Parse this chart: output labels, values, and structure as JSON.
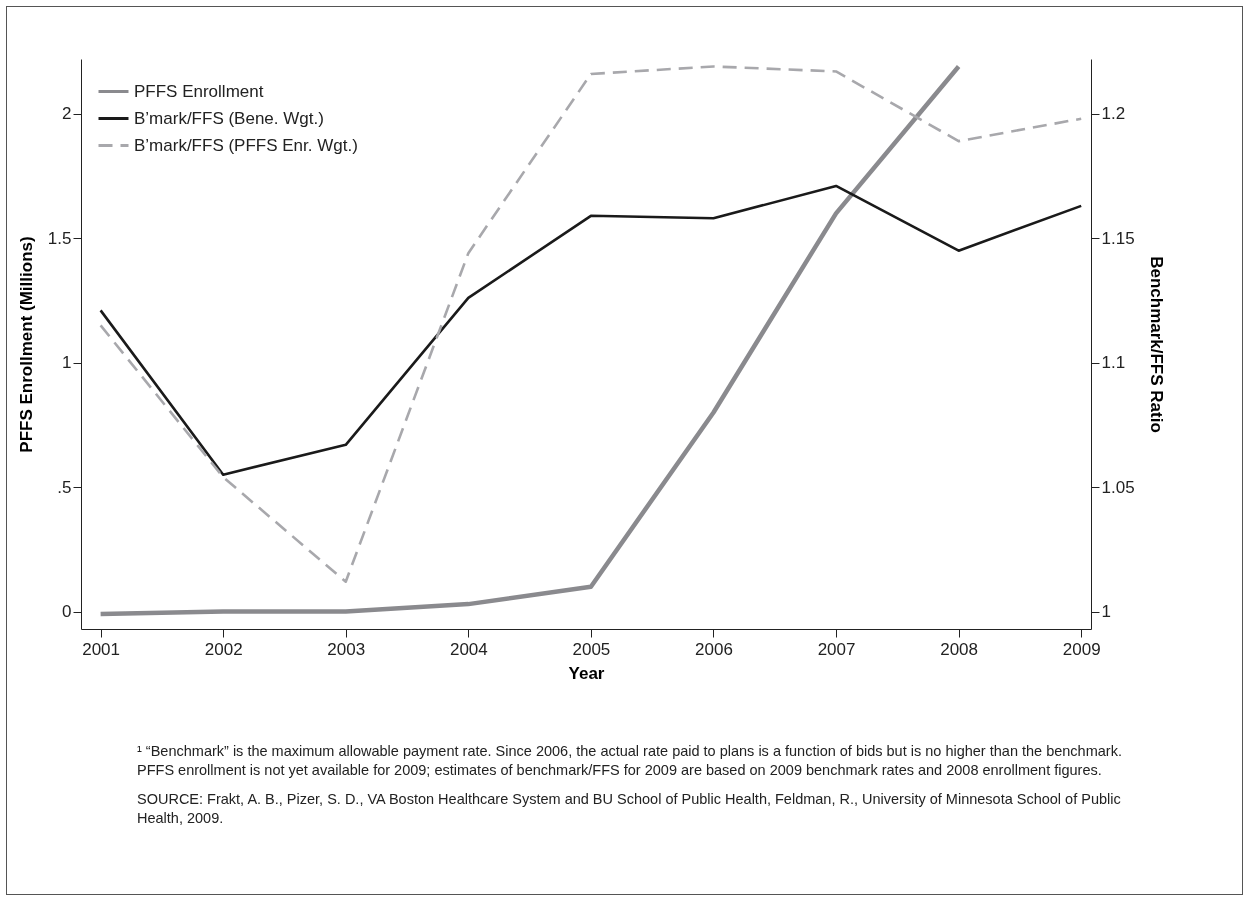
{
  "chart_data": {
    "type": "line",
    "xlabel": "Year",
    "ylabel": "PFFS Enrollment (Millions)",
    "y2label": "Benchmark/FFS Ratio",
    "x": [
      2001,
      2002,
      2003,
      2004,
      2005,
      2006,
      2007,
      2008,
      2009
    ],
    "xlim": [
      2000.84,
      2009.08
    ],
    "xticks": [
      2001,
      2002,
      2003,
      2004,
      2005,
      2006,
      2007,
      2008,
      2009
    ],
    "ylim": [
      -0.07,
      2.22
    ],
    "yticks": [
      0,
      {
        "value": 0.5,
        "label": ".5"
      },
      1,
      1.5,
      2
    ],
    "y2lim": [
      0.993,
      1.222
    ],
    "y2ticks": [
      1,
      1.05,
      1.1,
      1.15,
      1.2
    ],
    "series": [
      {
        "name": "PFFS Enrollment",
        "color": "#8a8a8e",
        "line_style": "solid",
        "values": [
          -0.01,
          0,
          0,
          0.03,
          0.1,
          0.8,
          1.6,
          2.19,
          null
        ]
      },
      {
        "name": "B’mark/FFS (Bene. Wgt.)",
        "color": "#1a1a1a",
        "line_style": "solid",
        "axis": "y2",
        "values": [
          1.121,
          1.055,
          1.067,
          1.126,
          1.159,
          1.158,
          1.171,
          1.145,
          1.163
        ]
      },
      {
        "name": "B’mark/FFS (PFFS Enr. Wgt.)",
        "color": "#a8a8ac",
        "line_style": "dashed",
        "axis": "y2",
        "values": [
          1.115,
          1.054,
          1.012,
          1.144,
          1.216,
          1.219,
          1.217,
          1.189,
          1.198
        ]
      }
    ],
    "grid": false,
    "legend": "top left",
    "marker": "none",
    "annotations": [
      "¹ “Benchmark” is the maximum allowable payment rate. Since 2006, the actual rate paid to plans is a function of bids but is no higher than the benchmark. PFFS enrollment is not yet available for 2009; estimates of benchmark/FFS for 2009 are based on 2009 benchmark rates and 2008 enrollment figures.",
      "SOURCE: Frakt, A. B., Pizer, S. D., VA Boston Healthcare System and BU School of Public Health, Feldman, R.,  University of Minnesota School of Public Health, 2009."
    ]
  }
}
